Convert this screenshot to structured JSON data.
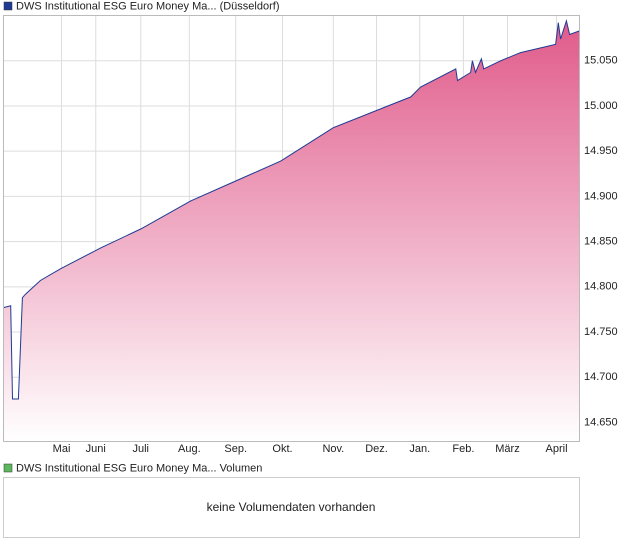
{
  "chart_data": {
    "type": "area",
    "x": [
      3.71,
      3.87,
      3.91,
      4.04,
      4.13,
      4.2,
      4.53,
      4.98,
      5.87,
      6.76,
      7.87,
      8.87,
      9.87,
      11.04,
      12.0,
      12.76,
      12.98,
      13.76,
      13.8,
      14.09,
      14.13,
      14.2,
      14.33,
      14.38,
      14.76,
      15.2,
      15.98,
      16.04,
      16.09,
      16.22,
      16.29,
      16.51
    ],
    "series": [
      {
        "name": "DWS Institutional ESG Euro Money Ma... (Düsseldorf)",
        "color": "#1f3a93",
        "values": [
          14.777,
          14.779,
          14.676,
          14.676,
          14.788,
          14.792,
          14.807,
          14.82,
          14.843,
          14.864,
          14.895,
          14.917,
          14.939,
          14.976,
          14.995,
          15.01,
          15.021,
          15.041,
          15.028,
          15.037,
          15.05,
          15.037,
          15.052,
          15.041,
          15.05,
          15.059,
          15.068,
          15.092,
          15.074,
          15.094,
          15.079,
          15.083
        ]
      }
    ],
    "fill_color": "#e05a8a",
    "xlim": [
      3.71,
      16.51
    ],
    "xticks": [
      {
        "value": 5,
        "label": "Mai"
      },
      {
        "value": 5.76,
        "label": "Juni"
      },
      {
        "value": 6.76,
        "label": "Juli"
      },
      {
        "value": 7.84,
        "label": "Aug."
      },
      {
        "value": 8.87,
        "label": "Sep."
      },
      {
        "value": 9.91,
        "label": "Okt."
      },
      {
        "value": 11.04,
        "label": "Nov."
      },
      {
        "value": 12.0,
        "label": "Dez."
      },
      {
        "value": 12.96,
        "label": "Jan."
      },
      {
        "value": 13.93,
        "label": "Feb."
      },
      {
        "value": 14.91,
        "label": "März"
      },
      {
        "value": 16.0,
        "label": "April"
      }
    ],
    "ylim": [
      14.629,
      15.1
    ],
    "yticks": [
      {
        "value": 14.65,
        "label": "14.650"
      },
      {
        "value": 14.7,
        "label": "14.700"
      },
      {
        "value": 14.75,
        "label": "14.750"
      },
      {
        "value": 14.8,
        "label": "14.800"
      },
      {
        "value": 14.85,
        "label": "14.850"
      },
      {
        "value": 14.9,
        "label": "14.900"
      },
      {
        "value": 14.95,
        "label": "14.950"
      },
      {
        "value": 15.0,
        "label": "15.000"
      },
      {
        "value": 15.05,
        "label": "15.050"
      }
    ],
    "grid": true
  },
  "volume_panel": {
    "legend": "DWS Institutional ESG Euro Money Ma... Volumen",
    "legend_color": "#5cb85c",
    "message": "keine Volumendaten vorhanden"
  }
}
